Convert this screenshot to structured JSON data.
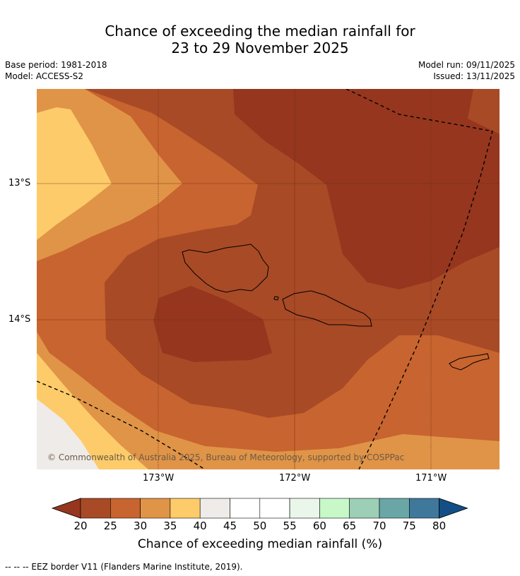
{
  "title_line1": "Chance of exceeding the median rainfall for",
  "title_line2": "23 to 29 November 2025",
  "base_period": "Base period: 1981-2018",
  "model": "Model: ACCESS-S2",
  "model_run": "Model run: 09/11/2025",
  "issued": "Issued: 13/11/2025",
  "lat_labels": [
    "13°S",
    "14°S"
  ],
  "lon_labels": [
    "173°W",
    "172°W",
    "171°W"
  ],
  "copyright": "© Commonwealth of Australia 2025, Bureau of Meteorology, supported by COSPPac",
  "colorbar": {
    "label": "Chance of exceeding median rainfall (%)",
    "ticks": [
      "20",
      "25",
      "30",
      "35",
      "40",
      "45",
      "50",
      "55",
      "60",
      "65",
      "70",
      "75",
      "80"
    ],
    "colors": [
      "#a84a26",
      "#c8642f",
      "#e09447",
      "#fdcb6a",
      "#efebe8",
      "#ffffff",
      "#ffffff",
      "#eaf6ea",
      "#c8f7c8",
      "#9ccfb6",
      "#6aa6a6",
      "#3f789a"
    ],
    "under_color": "#96361e",
    "over_color": "#134f86"
  },
  "footnote": "--  --  -- EEZ border V11 (Flanders Marine Institute, 2019)."
}
